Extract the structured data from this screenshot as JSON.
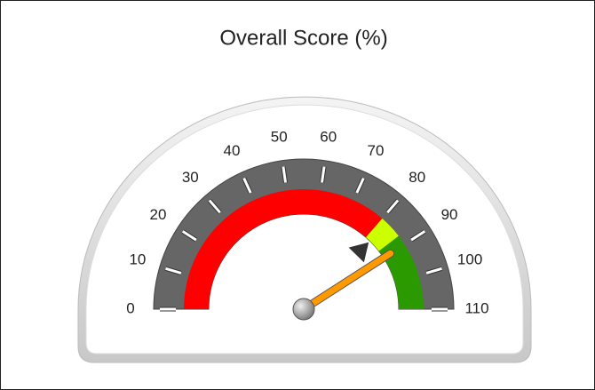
{
  "chart_data": {
    "type": "gauge",
    "title": "Overall Score (%)",
    "ylim": [
      0,
      110
    ],
    "yticks": [
      0,
      10,
      20,
      30,
      40,
      50,
      60,
      70,
      80,
      90,
      100,
      110
    ],
    "bands": [
      {
        "from": 0,
        "to": 80,
        "color": "#ff0000"
      },
      {
        "from": 80,
        "to": 87,
        "color": "#ccff00"
      },
      {
        "from": 87,
        "to": 110,
        "color": "#2a9a00"
      }
    ],
    "value": 90,
    "marker": 82
  }
}
